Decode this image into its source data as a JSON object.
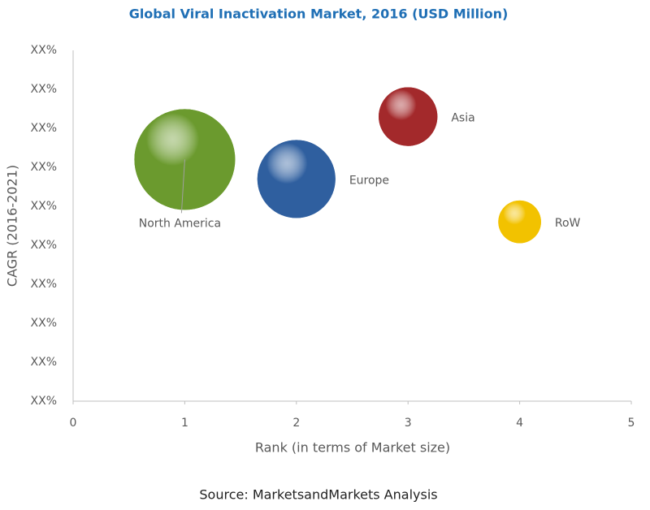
{
  "chart_data": {
    "type": "bubble",
    "title": "Global Viral Inactivation Market, 2016 (USD Million)",
    "x_label": "Rank (in terms of Market size)",
    "y_label": "CAGR (2016-2021)",
    "source": "Source: MarketsandMarkets Analysis",
    "categories": [
      "North America",
      "Europe",
      "Asia",
      "RoW"
    ],
    "x": [
      1,
      2,
      3,
      4
    ],
    "values": [
      6.2,
      5.7,
      7.3,
      4.6
    ],
    "sizes": [
      100,
      60,
      34,
      18
    ],
    "colors": [
      "#6b9a2e",
      "#2f5f9f",
      "#a3292b",
      "#f2c200"
    ],
    "xlim": [
      0,
      5
    ],
    "xticks": [
      0,
      1,
      2,
      3,
      4,
      5
    ],
    "ylim": [
      0,
      9
    ],
    "yticks": [
      {
        "value": 0,
        "label": "XX%"
      },
      {
        "value": 1,
        "label": "XX%"
      },
      {
        "value": 2,
        "label": "XX%"
      },
      {
        "value": 3,
        "label": "XX%"
      },
      {
        "value": 4,
        "label": "XX%"
      },
      {
        "value": 5,
        "label": "XX%"
      },
      {
        "value": 6,
        "label": "XX%"
      },
      {
        "value": 7,
        "label": "XX%"
      },
      {
        "value": 8,
        "label": "XX%"
      },
      {
        "value": 9,
        "label": "XX%"
      }
    ],
    "grid": false
  }
}
